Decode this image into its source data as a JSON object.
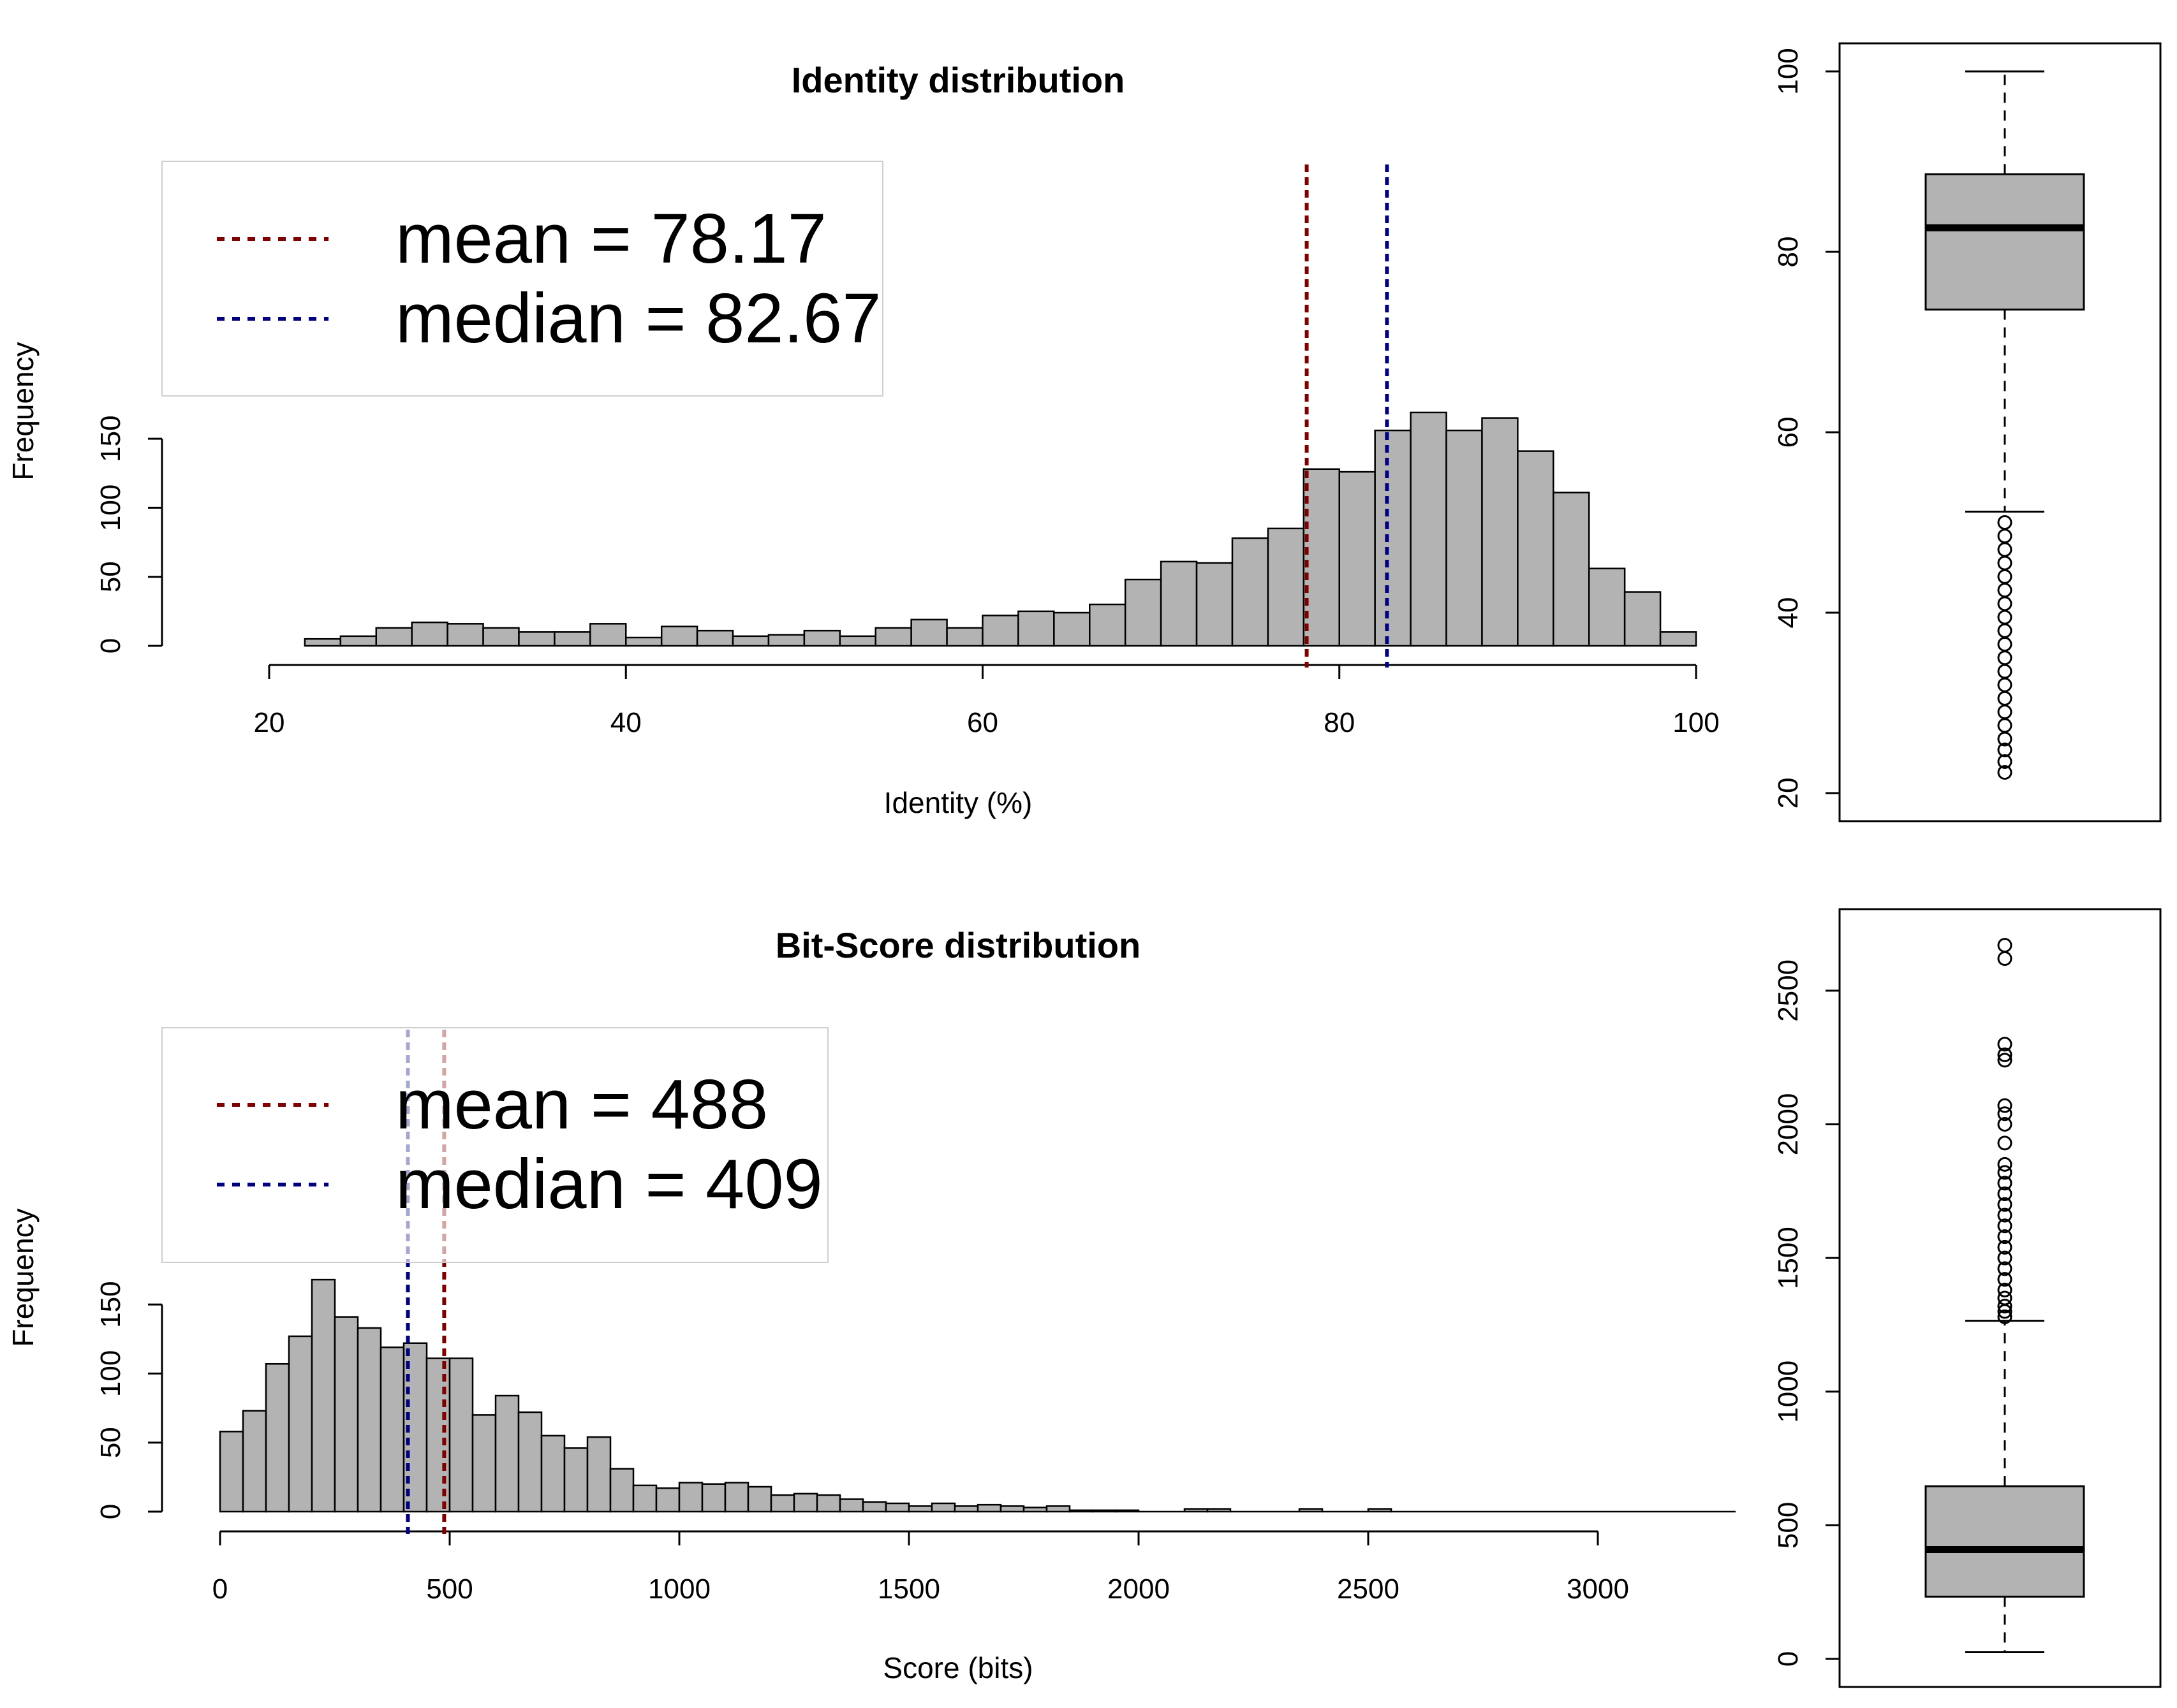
{
  "chart_data": [
    {
      "type": "bar",
      "id": "identity-histogram",
      "title": "Identity distribution",
      "xlabel": "Identity (%)",
      "ylabel": "Frequency",
      "xlim": [
        20,
        100
      ],
      "ylim": [
        0,
        150
      ],
      "xticks": [
        20,
        40,
        60,
        80,
        100
      ],
      "yticks": [
        0,
        50,
        100,
        150
      ],
      "bin_start": 22,
      "bin_width": 2,
      "values": [
        5,
        7,
        13,
        17,
        16,
        13,
        10,
        10,
        16,
        6,
        14,
        11,
        7,
        8,
        11,
        7,
        13,
        19,
        13,
        22,
        25,
        24,
        30,
        48,
        61,
        60,
        78,
        85,
        128,
        126,
        156,
        169,
        156,
        165,
        141,
        111,
        56,
        39,
        10
      ],
      "mean": 78.17,
      "median": 82.67,
      "legend": [
        {
          "label": "mean = 78.17",
          "color": "#800000"
        },
        {
          "label": "median = 82.67",
          "color": "#000080"
        }
      ],
      "legend_position": "top-left"
    },
    {
      "type": "box",
      "id": "identity-boxplot",
      "ylim": [
        20,
        100
      ],
      "yticks": [
        20,
        40,
        60,
        80,
        100
      ],
      "whisker_low": 51.2,
      "q1": 73.6,
      "median": 82.67,
      "q3": 88.6,
      "whisker_high": 100,
      "outliers": [
        22.3,
        23.5,
        24.8,
        26,
        27.5,
        29,
        30.5,
        32,
        33.5,
        35,
        36.5,
        38,
        39.5,
        41,
        42.5,
        44,
        45.5,
        47,
        48.5,
        50
      ]
    },
    {
      "type": "bar",
      "id": "bitscore-histogram",
      "title": "Bit-Score distribution",
      "xlabel": "Score (bits)",
      "ylabel": "Frequency",
      "xlim": [
        0,
        3000
      ],
      "ylim": [
        0,
        150
      ],
      "xticks": [
        0,
        500,
        1000,
        1500,
        2000,
        2500,
        3000
      ],
      "yticks": [
        0,
        50,
        100,
        150
      ],
      "bin_start": 0,
      "bin_width": 50,
      "values": [
        58,
        73,
        107,
        127,
        168,
        141,
        133,
        119,
        122,
        111,
        111,
        70,
        84,
        72,
        55,
        46,
        54,
        31,
        19,
        17,
        21,
        20,
        21,
        18,
        12,
        13,
        12,
        9,
        7,
        6,
        4,
        6,
        4,
        5,
        4,
        3,
        4,
        1,
        1,
        1,
        0,
        0,
        2,
        2,
        0,
        0,
        0,
        2,
        0,
        0,
        2,
        0,
        0,
        0,
        0,
        0,
        0,
        0,
        0,
        0,
        0,
        0,
        0,
        0,
        0,
        0
      ],
      "mean": 488,
      "median": 409,
      "legend": [
        {
          "label": "mean = 488",
          "color": "#800000"
        },
        {
          "label": "median = 409",
          "color": "#000080"
        }
      ],
      "legend_position": "top-left"
    },
    {
      "type": "box",
      "id": "bitscore-boxplot",
      "ylim": [
        0,
        2700
      ],
      "yticks": [
        0,
        500,
        1000,
        1500,
        2000,
        2500
      ],
      "whisker_low": 25,
      "q1": 233,
      "median": 409,
      "q3": 646,
      "whisker_high": 1265,
      "outliers": [
        1280,
        1300,
        1320,
        1350,
        1380,
        1420,
        1460,
        1500,
        1540,
        1580,
        1620,
        1660,
        1700,
        1740,
        1780,
        1820,
        1850,
        1930,
        2000,
        2040,
        2070,
        2240,
        2260,
        2300,
        2620,
        2670
      ]
    }
  ]
}
